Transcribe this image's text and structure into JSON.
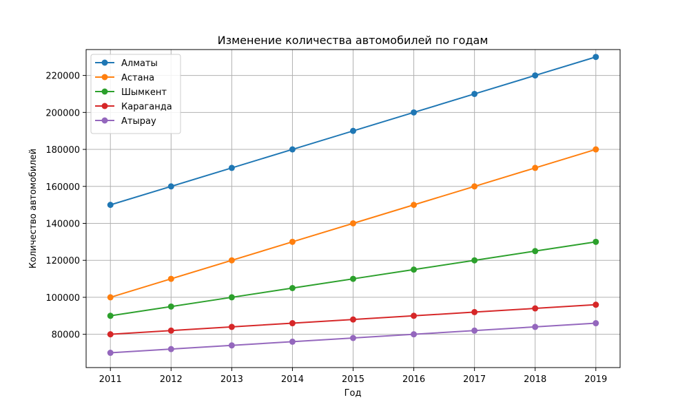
{
  "chart_data": {
    "type": "line",
    "title": "Изменение количества автомобилей по годам",
    "xlabel": "Год",
    "ylabel": "Количество автомобилей",
    "x": [
      2011,
      2012,
      2013,
      2014,
      2015,
      2016,
      2017,
      2018,
      2019
    ],
    "xlim": [
      2010.6,
      2019.4
    ],
    "ylim": [
      62000,
      234000
    ],
    "yticks": [
      80000,
      100000,
      120000,
      140000,
      160000,
      180000,
      200000,
      220000
    ],
    "grid": true,
    "legend_position": "top-left",
    "series": [
      {
        "name": "Алматы",
        "color": "#1f77b4",
        "values": [
          150000,
          160000,
          170000,
          180000,
          190000,
          200000,
          210000,
          220000,
          230000
        ]
      },
      {
        "name": "Астана",
        "color": "#ff7f0e",
        "values": [
          100000,
          110000,
          120000,
          130000,
          140000,
          150000,
          160000,
          170000,
          180000
        ]
      },
      {
        "name": "Шымкент",
        "color": "#2ca02c",
        "values": [
          90000,
          95000,
          100000,
          105000,
          110000,
          115000,
          120000,
          125000,
          130000
        ]
      },
      {
        "name": "Караганда",
        "color": "#d62728",
        "values": [
          80000,
          82000,
          84000,
          86000,
          88000,
          90000,
          92000,
          94000,
          96000
        ]
      },
      {
        "name": "Атырау",
        "color": "#9467bd",
        "values": [
          70000,
          72000,
          74000,
          76000,
          78000,
          80000,
          82000,
          84000,
          86000
        ]
      }
    ]
  }
}
